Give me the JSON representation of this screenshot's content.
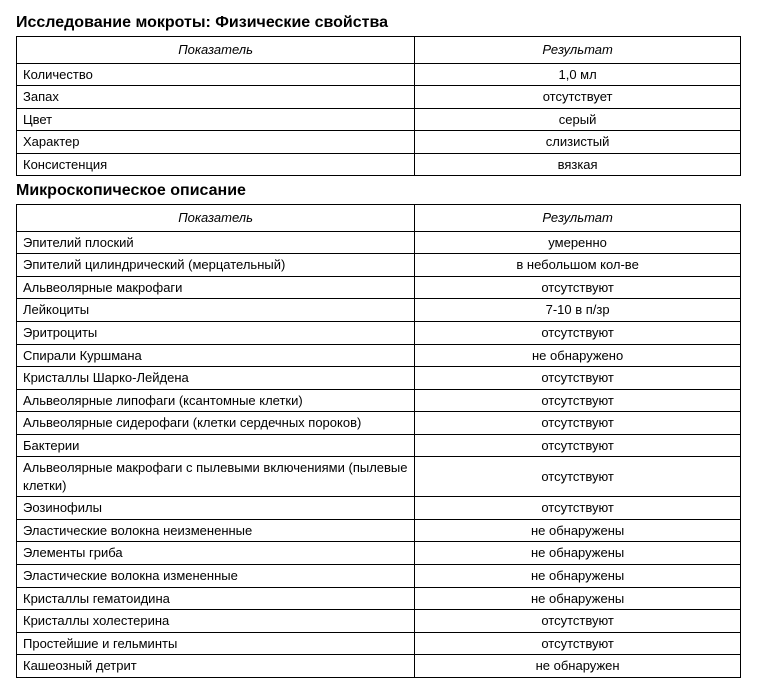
{
  "section1": {
    "title": "Исследование мокроты: Физические свойства",
    "columns": [
      "Показатель",
      "Результат"
    ],
    "rows": [
      [
        "Количество",
        "1,0 мл"
      ],
      [
        "Запах",
        "отсутствует"
      ],
      [
        "Цвет",
        "серый"
      ],
      [
        "Характер",
        "слизистый"
      ],
      [
        "Консистенция",
        "вязкая"
      ]
    ]
  },
  "section2": {
    "title": "Микроскопическое описание",
    "columns": [
      "Показатель",
      "Результат"
    ],
    "rows": [
      [
        "Эпителий плоский",
        "умеренно"
      ],
      [
        "Эпителий цилиндрический  (мерцательный)",
        "в небольшом кол-ве"
      ],
      [
        "Альвеолярные макрофаги",
        "отсутствуют"
      ],
      [
        "Лейкоциты",
        "7-10 в п/зр"
      ],
      [
        "Эритроциты",
        "отсутствуют"
      ],
      [
        "Спирали Куршмана",
        "не обнаружено"
      ],
      [
        "Кристаллы Шарко-Лейдена",
        "отсутствуют"
      ],
      [
        "Альвеолярные липофаги  (ксантомные клетки)",
        "отсутствуют"
      ],
      [
        "Альвеолярные сидерофаги  (клетки сердечных пороков)",
        "отсутствуют"
      ],
      [
        "Бактерии",
        "отсутствуют"
      ],
      [
        "Альвеолярные макрофаги с пылевыми включениями  (пылевые клетки)",
        "отсутствуют"
      ],
      [
        "Эозинофилы",
        "отсутствуют"
      ],
      [
        "Эластические волокна неизмененные",
        "не обнаружены"
      ],
      [
        "Элементы гриба",
        "не обнаружены"
      ],
      [
        "Эластические волокна измененные",
        "не обнаружены"
      ],
      [
        "Кристаллы гематоидина",
        "не обнаружены"
      ],
      [
        "Кристаллы холестерина",
        "отсутствуют"
      ],
      [
        "Простейшие и гельминты",
        "отсутствуют"
      ],
      [
        "Кашеозный детрит",
        "не обнаружен"
      ]
    ]
  }
}
